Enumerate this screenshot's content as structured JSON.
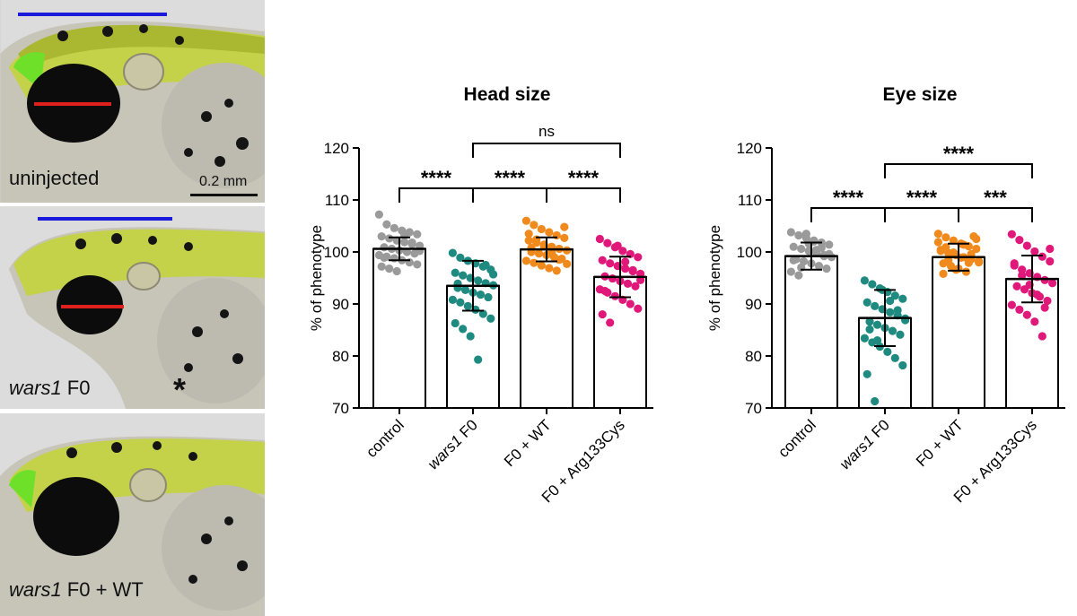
{
  "photos": {
    "panels": [
      {
        "label": "uninjected",
        "label_italic": "",
        "label_rest": "",
        "scale_bar": "0.2 mm",
        "asterisk": ""
      },
      {
        "label": "",
        "label_italic": "wars1",
        "label_rest": " F0",
        "scale_bar": "",
        "asterisk": "*"
      },
      {
        "label": "",
        "label_italic": "wars1",
        "label_rest": " F0 + WT",
        "scale_bar": "",
        "asterisk": ""
      }
    ],
    "colors": {
      "blue_bar": "#1a1adc",
      "red_bar": "#e0201c"
    }
  },
  "chart_data": [
    {
      "type": "bar",
      "title": "Head size",
      "ylabel": "% of phenotype",
      "categories": [
        "control",
        "wars1 F0",
        "F0 + WT",
        "F0 + Arg133Cys"
      ],
      "category_italic_prefix": [
        "",
        "wars1",
        "",
        ""
      ],
      "category_rest": [
        "control",
        " F0",
        "F0 + WT",
        "F0 + Arg133Cys"
      ],
      "values": [
        100.6,
        93.5,
        100.5,
        95.2
      ],
      "sd": [
        2.2,
        4.8,
        2.3,
        3.9
      ],
      "ylim": [
        70,
        120
      ],
      "yticks": [
        70,
        80,
        90,
        100,
        110,
        120
      ],
      "colors": [
        "#9a9a9a",
        "#1e8a80",
        "#f08a1c",
        "#e0187a"
      ],
      "points": [
        [
          107.2,
          105.3,
          104.6,
          104.1,
          103.8,
          103.4,
          103.0,
          102.6,
          102.2,
          101.9,
          101.5,
          101.2,
          100.9,
          100.6,
          100.3,
          100.0,
          99.7,
          99.4,
          99.1,
          98.8,
          98.4,
          98.0,
          97.6,
          97.2,
          96.8,
          96.3,
          103.2,
          101.8,
          100.2,
          98.9
        ],
        [
          99.8,
          98.9,
          98.3,
          97.8,
          97.2,
          96.6,
          96.0,
          95.5,
          95.0,
          94.5,
          94.0,
          93.6,
          93.1,
          92.7,
          92.2,
          91.8,
          91.3,
          90.8,
          90.3,
          89.6,
          88.9,
          88.1,
          87.2,
          86.3,
          85.2,
          83.8,
          79.3,
          97.5,
          95.7,
          93.9
        ],
        [
          106.0,
          105.2,
          104.4,
          103.8,
          103.2,
          102.7,
          102.2,
          101.8,
          101.4,
          101.0,
          100.6,
          100.3,
          100.0,
          99.7,
          99.4,
          99.0,
          98.7,
          98.3,
          97.9,
          97.4,
          96.9,
          96.4,
          104.8,
          103.5,
          102.4,
          101.1,
          99.9,
          98.5,
          97.7,
          100.8
        ],
        [
          102.5,
          101.7,
          100.9,
          100.2,
          99.6,
          99.0,
          98.4,
          97.8,
          97.3,
          96.8,
          96.3,
          95.8,
          95.3,
          94.9,
          94.4,
          93.9,
          93.4,
          92.8,
          92.2,
          91.5,
          90.8,
          90.0,
          89.1,
          88.0,
          86.4,
          101.2,
          98.1,
          96.5,
          94.6,
          92.5
        ]
      ],
      "comparisons": [
        {
          "a": 0,
          "b": 1,
          "label": "****",
          "level": 0
        },
        {
          "a": 1,
          "b": 2,
          "label": "****",
          "level": 0
        },
        {
          "a": 2,
          "b": 3,
          "label": "****",
          "level": 0
        },
        {
          "a": 1,
          "b": 3,
          "label": "ns",
          "level": 1
        }
      ]
    },
    {
      "type": "bar",
      "title": "Eye size",
      "ylabel": "% of phenotype",
      "categories": [
        "control",
        "wars1 F0",
        "F0 + WT",
        "F0 + Arg133Cys"
      ],
      "category_italic_prefix": [
        "",
        "wars1",
        "",
        ""
      ],
      "category_rest": [
        "control",
        " F0",
        "F0 + WT",
        "F0 + Arg133Cys"
      ],
      "values": [
        99.2,
        87.3,
        99.0,
        94.8
      ],
      "sd": [
        2.6,
        5.4,
        2.6,
        4.5
      ],
      "ylim": [
        70,
        120
      ],
      "yticks": [
        70,
        80,
        90,
        100,
        110,
        120
      ],
      "colors": [
        "#9a9a9a",
        "#1e8a80",
        "#f08a1c",
        "#e0187a"
      ],
      "points": [
        [
          103.8,
          103.2,
          102.7,
          102.2,
          101.8,
          101.4,
          101.0,
          100.6,
          100.2,
          99.8,
          99.4,
          99.0,
          98.6,
          98.2,
          97.8,
          97.3,
          96.8,
          96.2,
          95.5,
          103.5,
          102.0,
          100.8,
          99.6,
          98.4,
          97.0,
          101.6,
          100.4,
          99.2
        ],
        [
          94.5,
          93.8,
          93.0,
          92.3,
          91.6,
          91.0,
          90.3,
          89.6,
          89.0,
          88.4,
          87.8,
          87.2,
          86.6,
          86.0,
          85.4,
          84.8,
          84.1,
          83.4,
          82.6,
          81.8,
          80.8,
          79.6,
          78.2,
          76.5,
          71.3,
          92.7,
          90.6,
          88.8,
          86.9,
          85.1,
          83.0
        ],
        [
          103.5,
          102.8,
          102.2,
          101.6,
          101.1,
          100.6,
          100.2,
          99.8,
          99.4,
          99.0,
          98.6,
          98.2,
          97.8,
          97.3,
          96.8,
          96.2,
          103.0,
          101.9,
          100.9,
          99.9,
          98.9,
          97.9,
          102.5,
          100.4,
          98.4,
          96.6,
          101.4,
          99.6,
          98.0,
          95.8
        ],
        [
          103.4,
          102.3,
          101.2,
          100.1,
          99.1,
          98.2,
          97.4,
          96.6,
          95.9,
          95.2,
          94.6,
          94.0,
          93.4,
          92.8,
          92.1,
          91.4,
          90.6,
          89.8,
          88.9,
          87.9,
          86.6,
          83.8,
          100.6,
          97.8,
          95.5,
          93.7,
          91.8,
          89.3
        ]
      ],
      "comparisons": [
        {
          "a": 0,
          "b": 1,
          "label": "****",
          "level": 0
        },
        {
          "a": 1,
          "b": 2,
          "label": "****",
          "level": 0
        },
        {
          "a": 2,
          "b": 3,
          "label": "***",
          "level": 0
        },
        {
          "a": 1,
          "b": 3,
          "label": "****",
          "level": 1
        }
      ]
    }
  ]
}
